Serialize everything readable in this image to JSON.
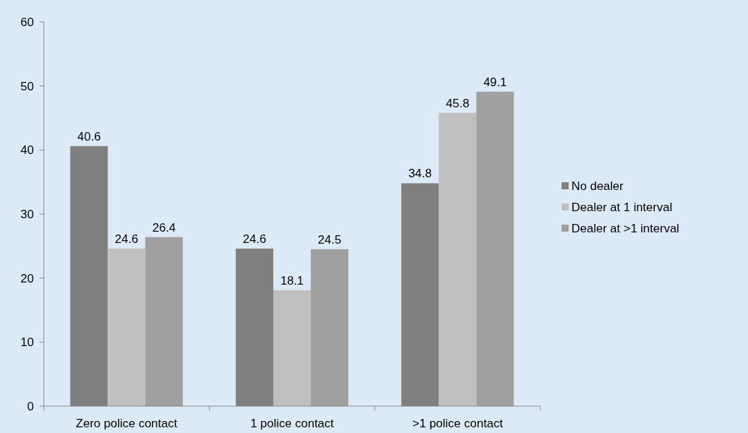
{
  "chart_data": {
    "type": "bar",
    "categories": [
      "Zero police contact",
      "1 police contact",
      ">1 police contact"
    ],
    "series": [
      {
        "name": "No dealer",
        "color": "#7f7f80",
        "values": [
          40.6,
          24.6,
          34.8
        ]
      },
      {
        "name": "Dealer at 1 interval",
        "color": "#bfbfc0",
        "values": [
          24.6,
          18.1,
          45.8
        ]
      },
      {
        "name": "Dealer at >1 interval",
        "color": "#a0a0a1",
        "values": [
          26.4,
          24.5,
          49.1
        ]
      }
    ],
    "ylim": [
      0,
      60
    ],
    "yticks": [
      0,
      10,
      20,
      30,
      40,
      50,
      60
    ],
    "data_labels": true,
    "legend": "right",
    "grid": false
  }
}
